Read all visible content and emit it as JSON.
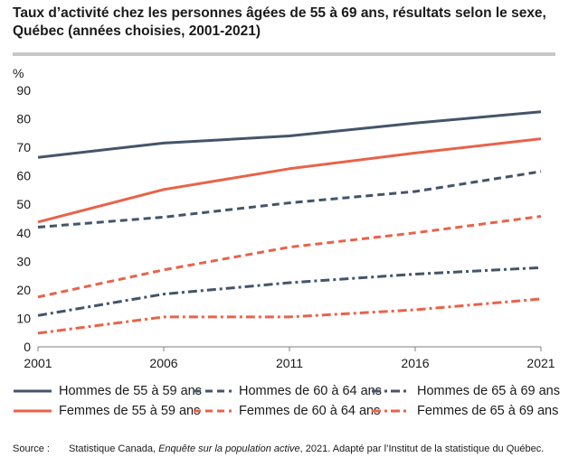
{
  "title_line1": "Taux d’activité chez les personnes âgées de 55 à 69 ans, résultats selon le sexe,",
  "title_line2": "Québec (années choisies, 2001-2021)",
  "source_label": "Source :",
  "source_part1": "Statistique Canada, ",
  "source_italic": "Enquête sur la population active",
  "source_part2": ", 2021. Adapté par l’Institut de la statistique du Québec.",
  "colors": {
    "hommes": "#44546a",
    "femmes": "#e8634a"
  },
  "chart_data": {
    "type": "line",
    "ylabel": "%",
    "x": [
      "2001",
      "2006",
      "2011",
      "2016",
      "2021"
    ],
    "ylim": [
      0,
      90
    ],
    "yticks": [
      0,
      10,
      20,
      30,
      40,
      50,
      60,
      70,
      80,
      90
    ],
    "grid": false,
    "legend_position": "bottom",
    "series": [
      {
        "name": "Hommes de 55 à 59 ans",
        "values": [
          66.5,
          71.5,
          74.0,
          78.5,
          82.5
        ],
        "color": "#44546a",
        "dash": "solid"
      },
      {
        "name": "Hommes de 60 à 64 ans",
        "values": [
          42.0,
          45.5,
          50.5,
          54.5,
          61.5
        ],
        "color": "#44546a",
        "dash": "dash"
      },
      {
        "name": "Hommes de 65 à 69 ans",
        "values": [
          11.0,
          18.5,
          22.5,
          25.5,
          27.8
        ],
        "color": "#44546a",
        "dash": "dashdot"
      },
      {
        "name": "Femmes de 55 à 59 ans",
        "values": [
          43.8,
          55.2,
          62.5,
          68.0,
          73.0
        ],
        "color": "#e8634a",
        "dash": "solid"
      },
      {
        "name": "Femmes de 60 à 64 ans",
        "values": [
          17.5,
          27.0,
          35.0,
          40.0,
          45.8
        ],
        "color": "#e8634a",
        "dash": "dash"
      },
      {
        "name": "Femmes de 65 à 69 ans",
        "values": [
          4.8,
          10.5,
          10.5,
          13.0,
          16.8
        ],
        "color": "#e8634a",
        "dash": "dashdot"
      }
    ]
  }
}
